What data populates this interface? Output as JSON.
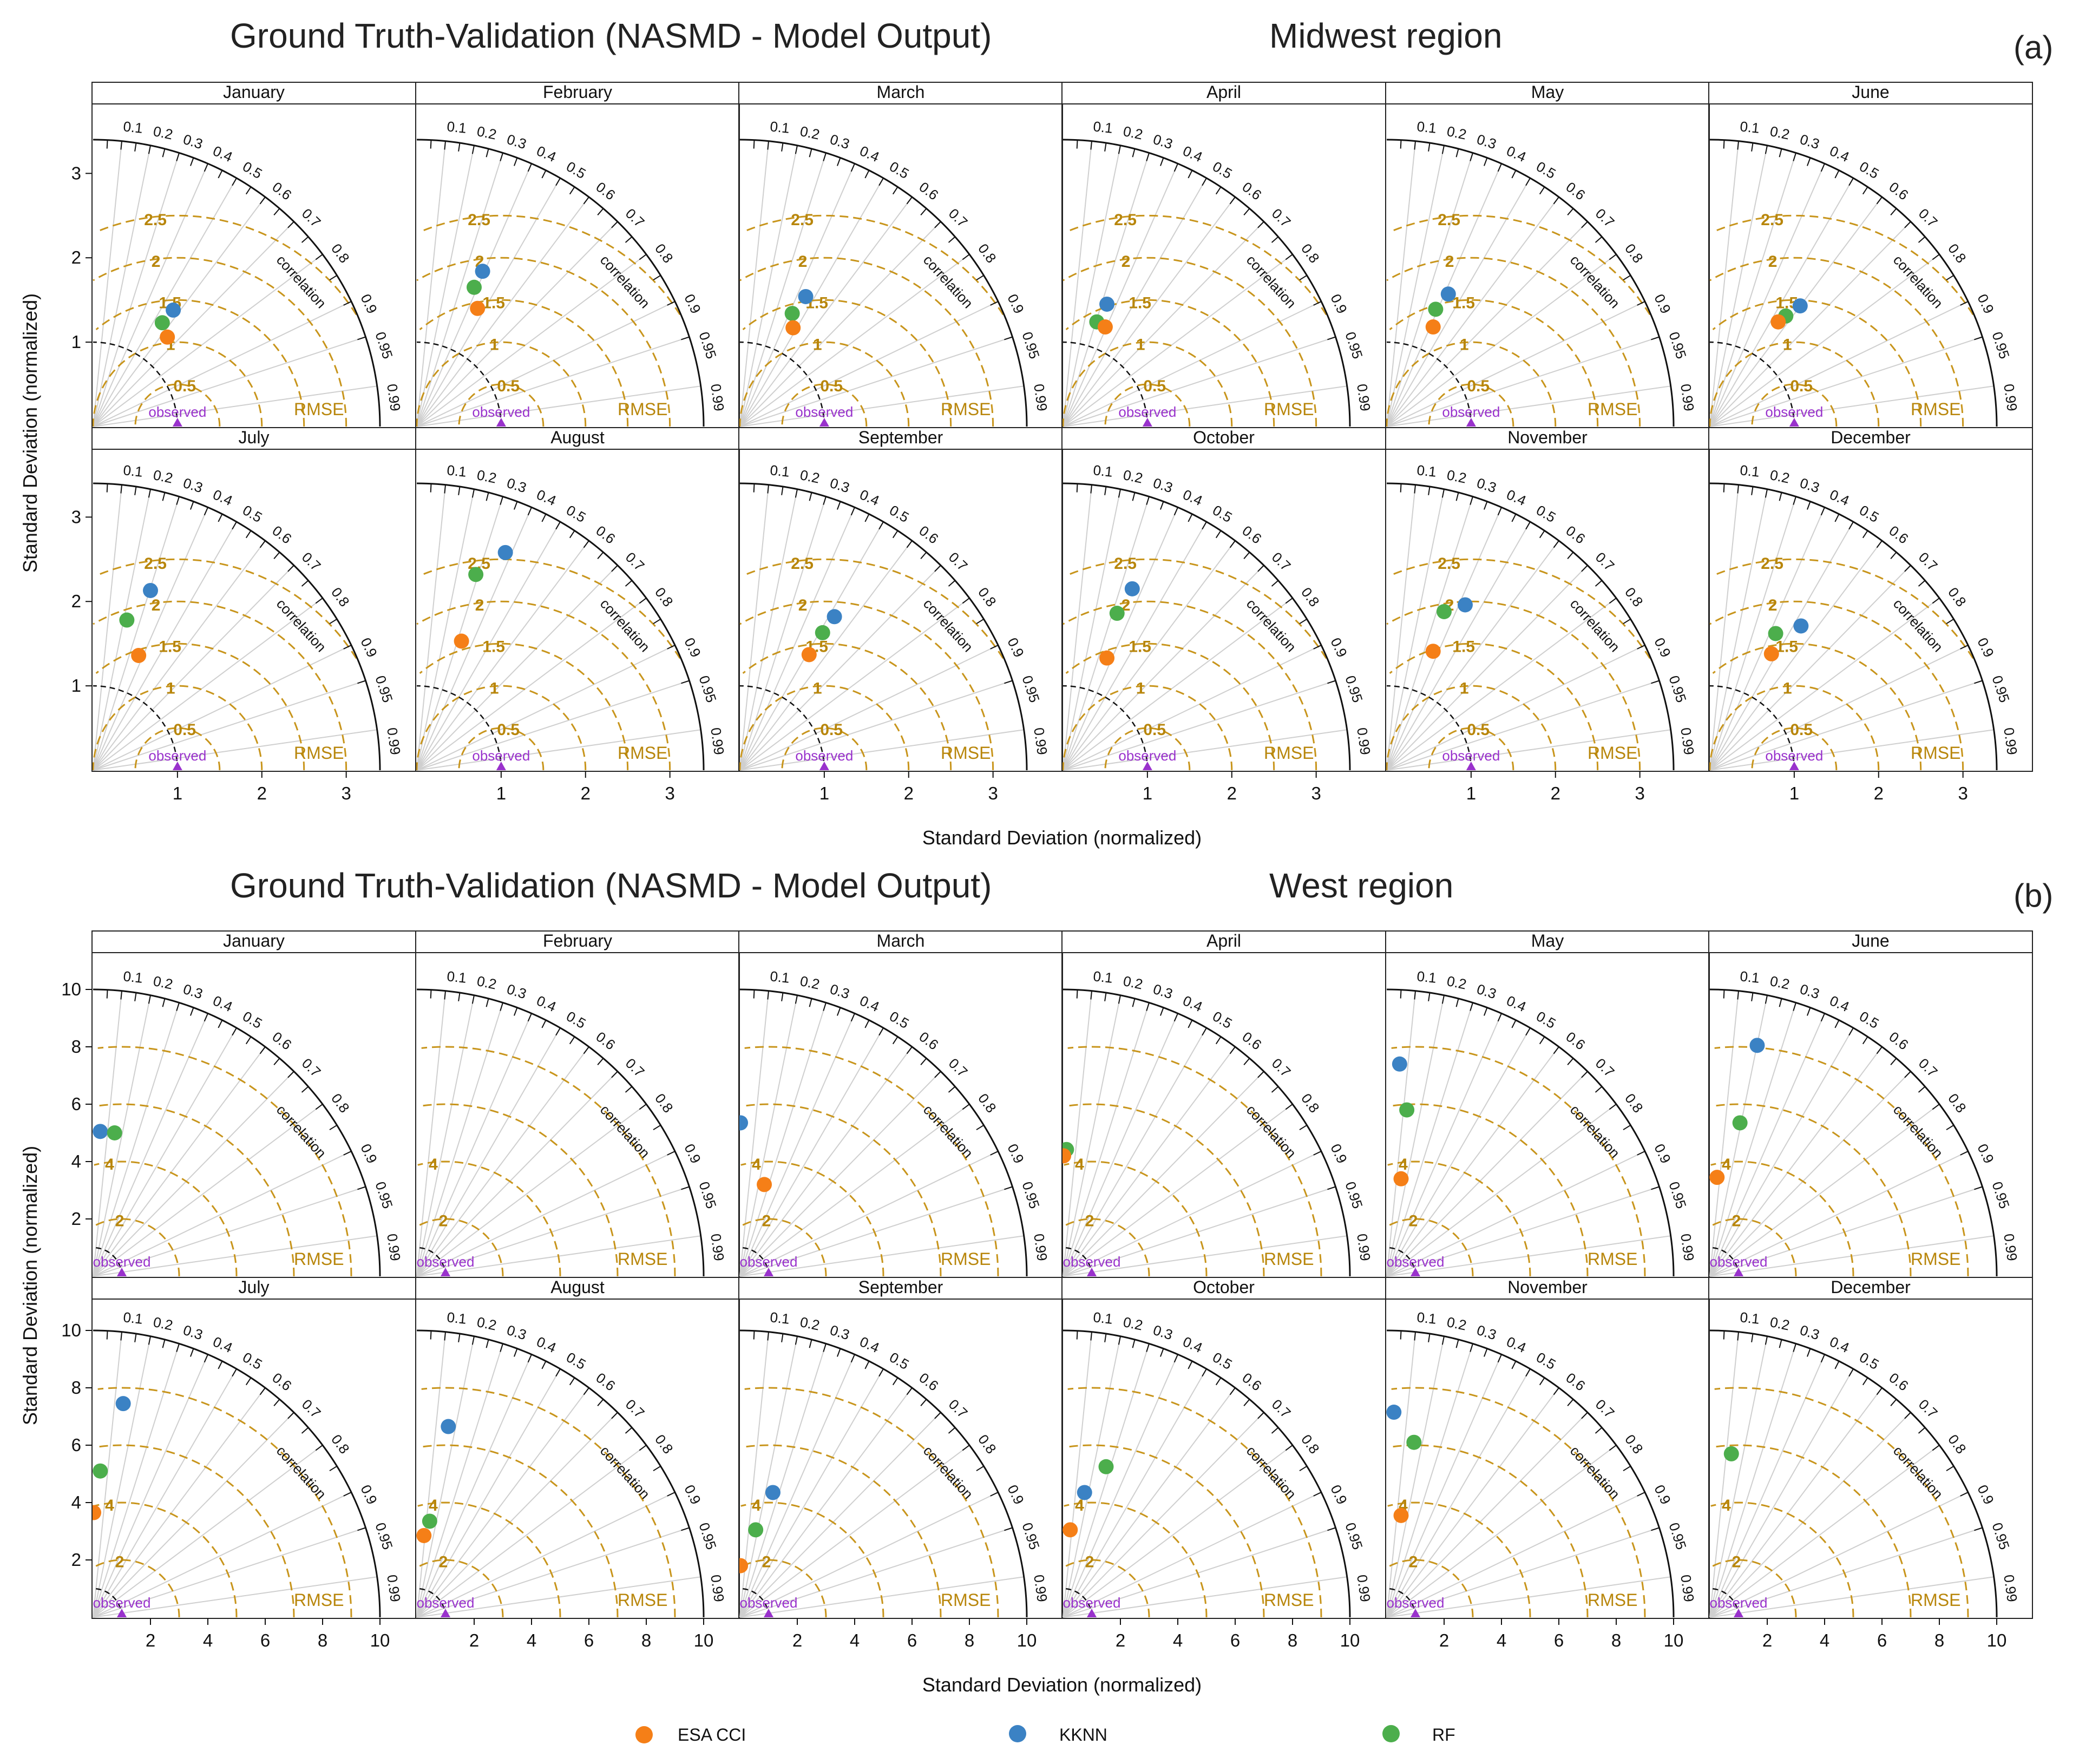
{
  "colors": {
    "ESA CCI": "#f57f17",
    "KKNN": "#3b82c4",
    "RF": "#4cae4c",
    "rmse": "#c8951c",
    "observed": "#9932cc"
  },
  "panels": [
    {
      "title_left": "Ground Truth-Validation (NASMD - Model Output)",
      "title_right": "Midwest region",
      "tag": "(a)"
    },
    {
      "title_left": "Ground Truth-Validation (NASMD - Model Output)",
      "title_right": "West region",
      "tag": "(b)"
    }
  ],
  "xlabel": "Standard Deviation (normalized)",
  "ylabel": "Standard Deviation (normalized)",
  "legend": [
    "ESA CCI",
    "KKNN",
    "RF"
  ],
  "chart_data": [
    {
      "type": "scatter",
      "subtype": "taylor-diagram",
      "region": "Midwest region",
      "xlabel": "Standard Deviation (normalized)",
      "ylabel": "Standard Deviation (normalized)",
      "axis_max": 3.4,
      "axis_ticks": [
        1,
        2,
        3
      ],
      "rmse_levels": [
        0.5,
        1,
        1.5,
        2,
        2.5
      ],
      "rmse_label_text": [
        "0.5",
        "1",
        "1.5",
        "2",
        "2.5"
      ],
      "ref_label": "observed",
      "rmse_word": "RMSE",
      "corr_word": "correlation",
      "correlation_ticks": [
        "0.1",
        "0.2",
        "0.3",
        "0.4",
        "0.5",
        "0.6",
        "0.7",
        "0.8",
        "0.9",
        "0.95",
        "0.99"
      ],
      "months": [
        {
          "month": "January",
          "points": [
            {
              "series": "KKNN",
              "x": 0.95,
              "y": 1.38
            },
            {
              "series": "RF",
              "x": 0.82,
              "y": 1.23
            },
            {
              "series": "ESA CCI",
              "x": 0.88,
              "y": 1.06
            }
          ]
        },
        {
          "month": "February",
          "points": [
            {
              "series": "KKNN",
              "x": 0.78,
              "y": 1.84
            },
            {
              "series": "RF",
              "x": 0.68,
              "y": 1.65
            },
            {
              "series": "ESA CCI",
              "x": 0.72,
              "y": 1.4
            }
          ]
        },
        {
          "month": "March",
          "points": [
            {
              "series": "KKNN",
              "x": 0.78,
              "y": 1.54
            },
            {
              "series": "RF",
              "x": 0.62,
              "y": 1.34
            },
            {
              "series": "ESA CCI",
              "x": 0.63,
              "y": 1.17
            }
          ]
        },
        {
          "month": "April",
          "points": [
            {
              "series": "KKNN",
              "x": 0.52,
              "y": 1.45
            },
            {
              "series": "RF",
              "x": 0.4,
              "y": 1.24
            },
            {
              "series": "ESA CCI",
              "x": 0.5,
              "y": 1.18
            }
          ]
        },
        {
          "month": "May",
          "points": [
            {
              "series": "KKNN",
              "x": 0.73,
              "y": 1.57
            },
            {
              "series": "RF",
              "x": 0.58,
              "y": 1.39
            },
            {
              "series": "ESA CCI",
              "x": 0.55,
              "y": 1.18
            }
          ]
        },
        {
          "month": "June",
          "points": [
            {
              "series": "KKNN",
              "x": 1.07,
              "y": 1.43
            },
            {
              "series": "RF",
              "x": 0.9,
              "y": 1.31
            },
            {
              "series": "ESA CCI",
              "x": 0.81,
              "y": 1.24
            }
          ]
        },
        {
          "month": "July",
          "points": [
            {
              "series": "KKNN",
              "x": 0.68,
              "y": 2.13
            },
            {
              "series": "RF",
              "x": 0.4,
              "y": 1.78
            },
            {
              "series": "ESA CCI",
              "x": 0.54,
              "y": 1.36
            }
          ]
        },
        {
          "month": "August",
          "points": [
            {
              "series": "KKNN",
              "x": 1.05,
              "y": 2.58
            },
            {
              "series": "RF",
              "x": 0.7,
              "y": 2.32
            },
            {
              "series": "ESA CCI",
              "x": 0.53,
              "y": 1.53
            }
          ]
        },
        {
          "month": "September",
          "points": [
            {
              "series": "KKNN",
              "x": 1.12,
              "y": 1.82
            },
            {
              "series": "RF",
              "x": 0.98,
              "y": 1.63
            },
            {
              "series": "ESA CCI",
              "x": 0.82,
              "y": 1.37
            }
          ]
        },
        {
          "month": "October",
          "points": [
            {
              "series": "KKNN",
              "x": 0.82,
              "y": 2.15
            },
            {
              "series": "RF",
              "x": 0.64,
              "y": 1.86
            },
            {
              "series": "ESA CCI",
              "x": 0.52,
              "y": 1.33
            }
          ]
        },
        {
          "month": "November",
          "points": [
            {
              "series": "KKNN",
              "x": 0.93,
              "y": 1.96
            },
            {
              "series": "RF",
              "x": 0.68,
              "y": 1.88
            },
            {
              "series": "ESA CCI",
              "x": 0.55,
              "y": 1.41
            }
          ]
        },
        {
          "month": "December",
          "points": [
            {
              "series": "KKNN",
              "x": 1.08,
              "y": 1.71
            },
            {
              "series": "RF",
              "x": 0.78,
              "y": 1.62
            },
            {
              "series": "ESA CCI",
              "x": 0.73,
              "y": 1.38
            }
          ]
        }
      ]
    },
    {
      "type": "scatter",
      "subtype": "taylor-diagram",
      "region": "West region",
      "xlabel": "Standard Deviation (normalized)",
      "ylabel": "Standard Deviation (normalized)",
      "axis_max": 10,
      "axis_ticks": [
        2,
        4,
        6,
        8,
        10
      ],
      "rmse_levels": [
        2,
        4,
        6,
        8
      ],
      "rmse_label_text": [
        "2",
        "4"
      ],
      "ref_label": "observed",
      "rmse_word": "RMSE",
      "corr_word": "correlation",
      "correlation_ticks": [
        "0.1",
        "0.2",
        "0.3",
        "0.4",
        "0.5",
        "0.6",
        "0.7",
        "0.8",
        "0.9",
        "0.95",
        "0.99"
      ],
      "months": [
        {
          "month": "January",
          "points": [
            {
              "series": "KKNN",
              "x": 0.25,
              "y": 5.05
            },
            {
              "series": "RF",
              "x": 0.75,
              "y": 5.0
            }
          ]
        },
        {
          "month": "February",
          "points": []
        },
        {
          "month": "March",
          "points": [
            {
              "series": "KKNN",
              "x": 0.02,
              "y": 5.35
            },
            {
              "series": "ESA CCI",
              "x": 0.85,
              "y": 3.2
            }
          ]
        },
        {
          "month": "April",
          "points": [
            {
              "series": "RF",
              "x": 0.12,
              "y": 4.42
            },
            {
              "series": "ESA CCI",
              "x": 0.02,
              "y": 4.2
            }
          ]
        },
        {
          "month": "May",
          "points": [
            {
              "series": "KKNN",
              "x": 0.45,
              "y": 7.4
            },
            {
              "series": "RF",
              "x": 0.7,
              "y": 5.8
            },
            {
              "series": "ESA CCI",
              "x": 0.5,
              "y": 3.4
            }
          ]
        },
        {
          "month": "June",
          "points": [
            {
              "series": "KKNN",
              "x": 1.65,
              "y": 8.05
            },
            {
              "series": "RF",
              "x": 1.05,
              "y": 5.35
            },
            {
              "series": "ESA CCI",
              "x": 0.25,
              "y": 3.45
            }
          ]
        },
        {
          "month": "July",
          "points": [
            {
              "series": "KKNN",
              "x": 1.05,
              "y": 7.45
            },
            {
              "series": "RF",
              "x": 0.25,
              "y": 5.1
            },
            {
              "series": "ESA CCI",
              "x": 0.02,
              "y": 3.65
            }
          ]
        },
        {
          "month": "August",
          "points": [
            {
              "series": "KKNN",
              "x": 1.1,
              "y": 6.65
            },
            {
              "series": "RF",
              "x": 0.45,
              "y": 3.35
            },
            {
              "series": "ESA CCI",
              "x": 0.25,
              "y": 2.85
            }
          ]
        },
        {
          "month": "September",
          "points": [
            {
              "series": "KKNN",
              "x": 1.15,
              "y": 4.35
            },
            {
              "series": "RF",
              "x": 0.55,
              "y": 3.05
            },
            {
              "series": "ESA CCI",
              "x": 0.02,
              "y": 1.8
            }
          ]
        },
        {
          "month": "October",
          "points": [
            {
              "series": "KKNN",
              "x": 0.75,
              "y": 4.35
            },
            {
              "series": "RF",
              "x": 1.5,
              "y": 5.25
            },
            {
              "series": "ESA CCI",
              "x": 0.25,
              "y": 3.05
            }
          ]
        },
        {
          "month": "November",
          "points": [
            {
              "series": "KKNN",
              "x": 0.25,
              "y": 7.15
            },
            {
              "series": "RF",
              "x": 0.95,
              "y": 6.1
            },
            {
              "series": "ESA CCI",
              "x": 0.5,
              "y": 3.55
            }
          ]
        },
        {
          "month": "December",
          "points": [
            {
              "series": "RF",
              "x": 0.75,
              "y": 5.7
            }
          ]
        }
      ]
    }
  ]
}
